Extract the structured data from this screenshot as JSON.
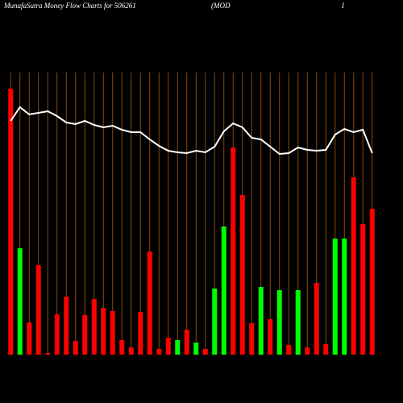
{
  "chart_data": {
    "type": "bar",
    "title": "MunafaSutra  Money Flow  Charts for 506261",
    "subtitle": "(MOD",
    "subtitle2": "I",
    "categories": [
      null,
      null,
      null,
      null,
      null,
      null,
      null,
      null,
      null,
      null,
      null,
      null,
      null,
      null,
      null,
      null,
      null,
      null,
      null,
      null,
      null,
      null,
      null,
      null,
      null,
      null,
      null,
      null,
      null,
      null,
      null,
      null,
      null,
      null,
      null,
      null,
      null,
      null,
      null,
      null
    ],
    "values": [
      330,
      132,
      40,
      111,
      2,
      50,
      72,
      17,
      49,
      69,
      58,
      54,
      18,
      9,
      53,
      128,
      7,
      21,
      18,
      31,
      15,
      7,
      82,
      159,
      257,
      198,
      39,
      84,
      44,
      80,
      12,
      80,
      9,
      89,
      13,
      144,
      144,
      220,
      162,
      181
    ],
    "colors": [
      "#ff0000",
      "#00ff00",
      "#ff0000",
      "#ff0000",
      "#ff0000",
      "#ff0000",
      "#ff0000",
      "#ff0000",
      "#ff0000",
      "#ff0000",
      "#ff0000",
      "#ff0000",
      "#ff0000",
      "#ff0000",
      "#ff0000",
      "#ff0000",
      "#ff0000",
      "#ff0000",
      "#00ff00",
      "#ff0000",
      "#00ff00",
      "#ff0000",
      "#00ff00",
      "#00ff00",
      "#ff0000",
      "#ff0000",
      "#ff0000",
      "#00ff00",
      "#ff0000",
      "#00ff00",
      "#ff0000",
      "#00ff00",
      "#ff0000",
      "#ff0000",
      "#ff0000",
      "#00ff00",
      "#00ff00",
      "#ff0000",
      "#ff0000",
      "#ff0000"
    ],
    "line": {
      "color": "#ffffff",
      "values": [
        290,
        307,
        298,
        300,
        302,
        296,
        288,
        286,
        290,
        285,
        282,
        284,
        279,
        276,
        276,
        267,
        259,
        253,
        251,
        250,
        253,
        251,
        258,
        277,
        287,
        282,
        269,
        267,
        258,
        249,
        250,
        257,
        254,
        253,
        254,
        273,
        280,
        276,
        279,
        250
      ]
    },
    "ylim": [
      0,
      350
    ],
    "grid_color": "#8a4a10"
  }
}
